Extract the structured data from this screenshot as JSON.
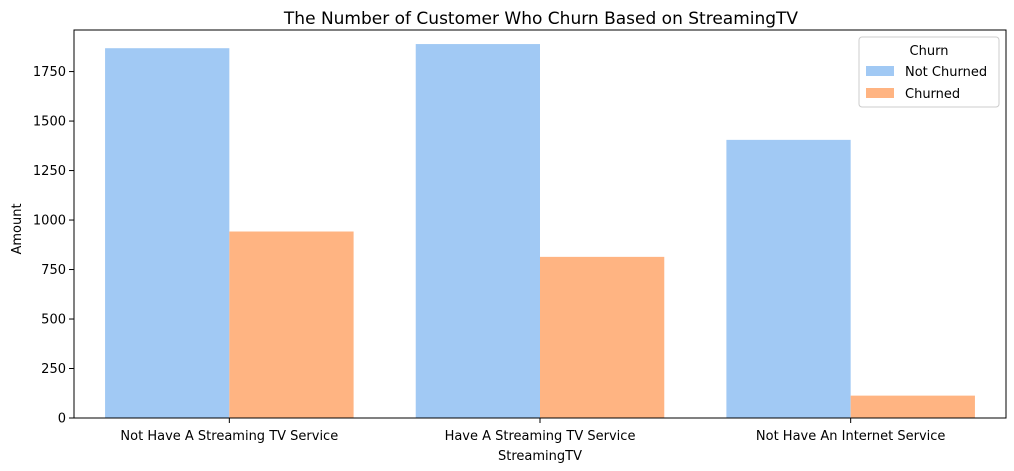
{
  "chart_data": {
    "type": "bar",
    "title": "The Number of Customer Who Churn Based on StreamingTV",
    "xlabel": "StreamingTV",
    "ylabel": "Amount",
    "categories": [
      "Not Have A Streaming TV Service",
      "Have A Streaming TV Service",
      "Not Have An Internet Service"
    ],
    "series": [
      {
        "name": "Not Churned",
        "values": [
          1868,
          1889,
          1405
        ],
        "color": "#a1c9f4"
      },
      {
        "name": "Churned",
        "values": [
          942,
          814,
          113
        ],
        "color": "#ffb482"
      }
    ],
    "ylim": [
      0,
      1960
    ],
    "yticks": [
      0,
      250,
      500,
      750,
      1000,
      1250,
      1500,
      1750
    ],
    "legend": {
      "title": "Churn",
      "placement": "top-right"
    },
    "grid": false
  }
}
